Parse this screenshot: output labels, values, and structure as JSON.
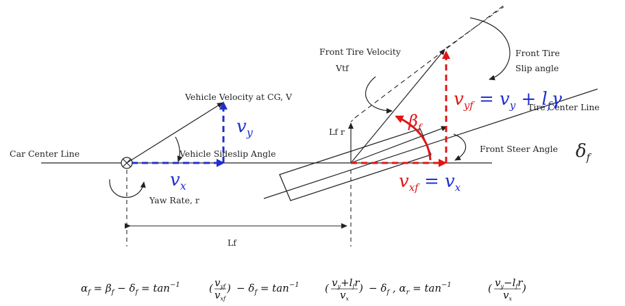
{
  "labels": {
    "car_center_line": "Car Center Line",
    "vehicle_velocity": "Vehicle Velocity at CG, V",
    "sideslip_angle": "Vehicle Sideslip Angle",
    "yaw_rate": "Yaw Rate, r",
    "lf": "Lf",
    "lf_r": "Lf r",
    "front_tire_velocity_line1": "Front Tire Velocity",
    "front_tire_velocity_line2": "Vtf",
    "front_tire_slip_line1": "Front Tire",
    "front_tire_slip_line2": "Slip angle",
    "tire_center_line": "Tire Center Line",
    "front_steer_angle": "Front Steer Angle"
  },
  "math": {
    "v_y": "v",
    "v_y_sub": "y",
    "v_x": "v",
    "v_x_sub": "x",
    "v_yf_eq": "v",
    "delta_f": "δ",
    "delta_f_sub": "f",
    "beta_f": "β",
    "beta_f_sub": "f",
    "v_xf_eq": "v"
  },
  "equation": {
    "text": "αf = βf − δf = tan⁻¹(vyf / vxf) − δf = tan⁻¹((vy+lf r) / vx) − δf , αr = tan⁻¹((vy−lf r) / vx)"
  },
  "colors": {
    "blue": "#1f2fd0",
    "red": "#e01515",
    "line": "#222222"
  }
}
